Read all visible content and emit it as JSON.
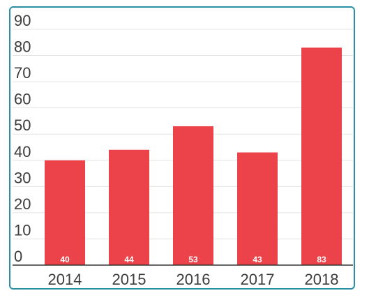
{
  "chart_data": {
    "type": "bar",
    "categories": [
      "2014",
      "2015",
      "2016",
      "2017",
      "2018"
    ],
    "values": [
      40,
      44,
      53,
      43,
      83
    ],
    "data_labels": [
      "40",
      "44",
      "53",
      "43",
      "83"
    ],
    "title": "",
    "xlabel": "",
    "ylabel": "",
    "ylim": [
      0,
      90
    ],
    "yticks": [
      0,
      10,
      20,
      30,
      40,
      50,
      60,
      70,
      80,
      90
    ],
    "ytick_labels": [
      "0",
      "10",
      "20",
      "30",
      "40",
      "50",
      "60",
      "70",
      "80",
      "90"
    ],
    "grid": true,
    "legend": "none",
    "bar_color": "#ec434b",
    "grid_color": "#e3e3e3",
    "axis_color": "#333333",
    "frame_color": "#2b8fa3"
  }
}
